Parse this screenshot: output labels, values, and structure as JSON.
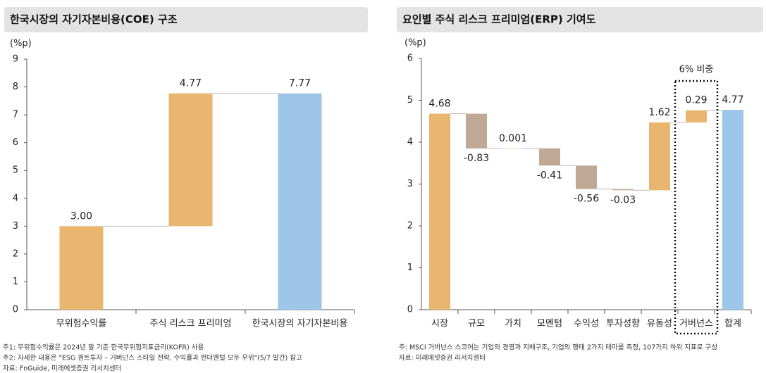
{
  "chart_data": [
    {
      "type": "waterfall",
      "title": "한국시장의 자기자본비용(COE) 구조",
      "unit": "(%p)",
      "categories": [
        "무위험수익률",
        "주식 리스크 프리미엄",
        "한국시장의 자기자본비용"
      ],
      "values": [
        3.0,
        4.77,
        7.77
      ],
      "value_labels": [
        "3.00",
        "4.77",
        "7.77"
      ],
      "measure": [
        "relative",
        "relative",
        "total"
      ],
      "colors": {
        "increase": "#e8b66e",
        "decrease": "#bfa995",
        "total": "#9dc6e8"
      },
      "ylim": [
        0,
        9
      ],
      "yticks": [
        0,
        1,
        2,
        3,
        4,
        5,
        6,
        7,
        8,
        9
      ]
    },
    {
      "type": "waterfall",
      "title": "요인별 주식 리스크 프리미엄(ERP) 기여도",
      "unit": "(%p)",
      "categories": [
        "시장",
        "규모",
        "가치",
        "모멘텀",
        "수익성",
        "투자성향",
        "유동성",
        "거버넌스",
        "합계"
      ],
      "values": [
        4.68,
        -0.83,
        0.001,
        -0.41,
        -0.56,
        -0.03,
        1.62,
        0.29,
        4.77
      ],
      "measure": [
        "relative",
        "relative",
        "relative",
        "relative",
        "relative",
        "relative",
        "relative",
        "relative",
        "total"
      ],
      "colors": {
        "increase": "#e8b66e",
        "decrease": "#bfa995",
        "total": "#9dc6e8"
      },
      "ylim": [
        0,
        6
      ],
      "yticks": [
        0,
        1,
        2,
        3,
        4,
        5,
        6
      ],
      "annotation": {
        "text": "6% 비중",
        "category": "거버넌스"
      }
    }
  ],
  "notes": {
    "left": [
      "주1: 무위험수익률은 2024년 말 기준 한국무위험지표금리(KOFR) 사용",
      "주2: 자세한 내용은 \"ESG 퀀트투자 – 거버넌스 스타일 전략, 수익률과 펀더멘털 모두 우위\"(5/7 발간) 참고",
      "자료: FnGuide, 미래에셋증권 리서치센터"
    ],
    "right": [
      "주: MSCI 거버넌스 스코어는 기업의 경영과 지배구조, 기업의 행태 2가지 테마를 측정, 107가지 하위 지표로 구성",
      "자료: 미래에셋증권 리서치센터"
    ]
  }
}
